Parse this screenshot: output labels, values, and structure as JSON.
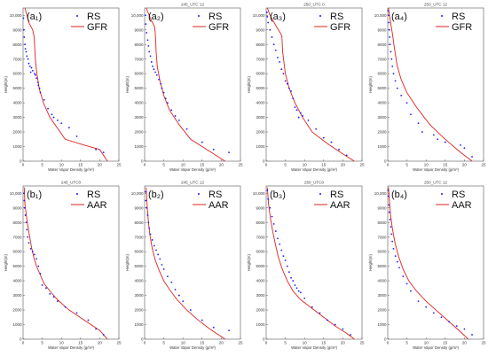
{
  "colors": {
    "rs": "#1a1aff",
    "model": "#dd2222",
    "frame": "#555555"
  },
  "panels_common": {
    "xlabel": "Water Vapor Density (g/m³)",
    "ylabel": "Height(m)",
    "xticks": [
      "0",
      "5",
      "10",
      "15",
      "20",
      "25"
    ],
    "yticks": [
      "0",
      "1000",
      "2000",
      "3000",
      "4000",
      "5000",
      "6000",
      "7000",
      "8000",
      "9000",
      "10,000"
    ]
  },
  "chart_data": [
    {
      "type": "scatter",
      "tag": "(a₁)",
      "title": "",
      "xlim": [
        0,
        25
      ],
      "ylim": [
        0,
        10500
      ],
      "legend": [
        "RS",
        "GFR"
      ],
      "legend_position": "top-right",
      "model": {
        "name": "GFR",
        "x": [
          22,
          20,
          16,
          11,
          7,
          5.3,
          4.2,
          3.6,
          3.2,
          3.0,
          2.9,
          2.5,
          1.5,
          0.5
        ],
        "y": [
          0,
          800,
          1100,
          1500,
          3000,
          4000,
          5000,
          6000,
          7000,
          8000,
          8500,
          9000,
          9500,
          10500
        ]
      },
      "rs": {
        "name": "RS",
        "x": [
          21,
          19,
          14,
          12,
          10,
          9,
          8,
          7.5,
          6.5,
          5.5,
          4.5,
          4.3,
          4.0,
          3.9,
          3.5,
          3.0,
          2.5,
          2.2,
          1.8,
          1.5,
          1.3,
          1.0,
          0.8,
          0.6,
          0.5,
          0.3,
          0.2,
          0.1,
          2.0,
          3.2
        ],
        "y": [
          600,
          800,
          1700,
          2300,
          2600,
          2800,
          3000,
          3200,
          3600,
          4200,
          4700,
          5000,
          5200,
          5400,
          5700,
          6000,
          6200,
          6400,
          6500,
          6700,
          7000,
          7200,
          7500,
          7700,
          8000,
          8500,
          9000,
          9800,
          6100,
          5900
        ]
      }
    },
    {
      "type": "scatter",
      "tag": "(a₂)",
      "title": "245_UTC 12",
      "xlim": [
        0,
        25
      ],
      "ylim": [
        0,
        10500
      ],
      "legend": [
        "RS",
        "GFR"
      ],
      "legend_position": "top-right",
      "model": {
        "name": "GFR",
        "x": [
          21,
          18,
          12,
          9,
          6.5,
          5,
          4,
          3.3,
          3,
          2.9,
          2.8,
          2.6,
          1.5,
          0.4
        ],
        "y": [
          0,
          500,
          1500,
          2500,
          3500,
          4500,
          5500,
          6500,
          7500,
          8200,
          8700,
          9200,
          9800,
          10500
        ]
      },
      "rs": {
        "name": "RS",
        "x": [
          22,
          18,
          15,
          11,
          9,
          8,
          7,
          6,
          5.5,
          5,
          4.5,
          4.2,
          3.7,
          3.2,
          2.8,
          2.4,
          2.1,
          1.8,
          1.5,
          1.2,
          1.0,
          0.8,
          0.5,
          0.3,
          0.2
        ],
        "y": [
          600,
          800,
          1300,
          2200,
          2800,
          3100,
          3500,
          4000,
          4300,
          4700,
          5000,
          5300,
          5600,
          5900,
          6100,
          6300,
          6500,
          6800,
          7200,
          7500,
          7900,
          8300,
          8800,
          9400,
          10000
        ]
      }
    },
    {
      "type": "scatter",
      "tag": "(a₃)",
      "title": "250_UTC 0",
      "xlim": [
        0,
        25
      ],
      "ylim": [
        0,
        10500
      ],
      "legend": [
        "RS",
        "GFR"
      ],
      "legend_position": "top-right",
      "model": {
        "name": "GFR",
        "x": [
          23,
          20,
          16,
          12,
          9.5,
          7.5,
          6,
          5,
          4.3,
          4.2,
          4.1,
          2.5,
          1.0,
          0.3
        ],
        "y": [
          0,
          500,
          1200,
          2000,
          3000,
          4000,
          5000,
          6000,
          7500,
          8000,
          8600,
          9300,
          10000,
          10500
        ]
      },
      "rs": {
        "name": "RS",
        "x": [
          21,
          19,
          17,
          15,
          13,
          11,
          9.5,
          9,
          8.5,
          8,
          7.5,
          7,
          6.5,
          6,
          5.5,
          5,
          4.5,
          4,
          3.5,
          3,
          2.5,
          2,
          1.5,
          1,
          0.5,
          0.3,
          0.2
        ],
        "y": [
          400,
          800,
          1300,
          1600,
          2200,
          2800,
          3100,
          3300,
          3000,
          3500,
          3700,
          4300,
          4800,
          5000,
          5300,
          5500,
          6000,
          6300,
          6800,
          7100,
          7600,
          8000,
          8500,
          9000,
          9500,
          9900,
          10200
        ]
      }
    },
    {
      "type": "scatter",
      "tag": "(a₄)",
      "title": "250_UTC 12",
      "xlim": [
        0,
        25
      ],
      "ylim": [
        0,
        10500
      ],
      "legend": [
        "RS",
        "GFR"
      ],
      "legend_position": "top-right",
      "model": {
        "name": "GFR",
        "x": [
          22,
          19,
          15,
          11,
          7.5,
          5,
          3.5,
          2.5,
          2.0,
          1.6,
          1.3,
          1.0,
          0.7,
          0.4,
          0.2
        ],
        "y": [
          0,
          600,
          1500,
          2500,
          3700,
          4700,
          5600,
          6500,
          7300,
          8000,
          8600,
          9100,
          9600,
          10100,
          10500
        ]
      },
      "rs": {
        "name": "RS",
        "x": [
          22,
          20,
          19,
          15,
          13,
          12,
          9,
          8,
          6,
          5,
          3.5,
          2.5,
          2,
          1.5,
          1.2,
          1.0,
          0.8,
          0.6,
          0.5,
          0.4,
          0.3,
          0.2,
          0.1
        ],
        "y": [
          300,
          900,
          1100,
          1300,
          1500,
          1800,
          2000,
          2600,
          3200,
          4000,
          4500,
          5000,
          5500,
          6000,
          6500,
          7000,
          7500,
          8000,
          8500,
          9000,
          9500,
          10000,
          10300
        ]
      }
    },
    {
      "type": "scatter",
      "tag": "(b₁)",
      "title": "245_UTC0",
      "xlim": [
        0,
        25
      ],
      "ylim": [
        0,
        10500
      ],
      "legend": [
        "RS",
        "AAR"
      ],
      "legend_position": "top-right",
      "model": {
        "name": "AAR",
        "x": [
          22,
          20,
          16,
          12,
          9,
          7,
          5.5,
          4.5,
          3.5,
          2.8,
          2.2,
          1.6,
          1.0,
          0.5,
          0.3
        ],
        "y": [
          0,
          600,
          1300,
          2000,
          2700,
          3300,
          3800,
          4400,
          5000,
          5600,
          6300,
          7200,
          8200,
          9200,
          10400
        ]
      },
      "rs": {
        "name": "RS",
        "x": [
          21,
          19,
          17,
          14,
          11,
          9,
          8,
          7,
          6,
          5,
          4.5,
          4,
          3.5,
          3,
          2.5,
          2,
          1.5,
          1.2,
          1.0,
          0.8,
          0.6,
          0.4,
          0.3,
          0.2
        ],
        "y": [
          300,
          700,
          1300,
          1800,
          2200,
          2600,
          2900,
          3100,
          3500,
          3700,
          4500,
          5000,
          5500,
          5800,
          6000,
          6200,
          6600,
          7000,
          7500,
          8000,
          8500,
          9000,
          9500,
          10000
        ]
      }
    },
    {
      "type": "scatter",
      "tag": "(b₂)",
      "title": "245_UTC 12",
      "xlim": [
        0,
        25
      ],
      "ylim": [
        0,
        10500
      ],
      "legend": [
        "RS",
        "AAR"
      ],
      "legend_position": "top-right",
      "model": {
        "name": "AAR",
        "x": [
          21,
          17,
          14,
          11,
          8.5,
          6.5,
          5,
          3.8,
          2.8,
          2.0,
          1.4,
          1.0,
          0.7,
          0.4
        ],
        "y": [
          0,
          700,
          1300,
          2000,
          2700,
          3400,
          4000,
          4700,
          5400,
          6200,
          7100,
          8000,
          9000,
          10400
        ]
      },
      "rs": {
        "name": "RS",
        "x": [
          22,
          18,
          15,
          12,
          10,
          9,
          8,
          7,
          6,
          5,
          4.5,
          4,
          3.5,
          3,
          2.5,
          2,
          1.5,
          1.2,
          1.0,
          0.8,
          0.5,
          0.3,
          0.2
        ],
        "y": [
          600,
          800,
          1300,
          2000,
          2600,
          3000,
          3400,
          3900,
          4300,
          4800,
          5100,
          5500,
          5800,
          6100,
          6400,
          6800,
          7200,
          7600,
          8000,
          8500,
          9000,
          9500,
          10100
        ]
      }
    },
    {
      "type": "scatter",
      "tag": "(b₃)",
      "title": "250_UTC0",
      "xlim": [
        0,
        25
      ],
      "ylim": [
        0,
        10500
      ],
      "legend": [
        "RS",
        "AAR"
      ],
      "legend_position": "top-right",
      "model": {
        "name": "AAR",
        "x": [
          23,
          21,
          18,
          15,
          12,
          9,
          7,
          5.5,
          4.2,
          3.2,
          2.4,
          1.7,
          1.1,
          0.6,
          0.3
        ],
        "y": [
          0,
          400,
          900,
          1500,
          2100,
          2700,
          3300,
          4000,
          4800,
          5600,
          6500,
          7400,
          8300,
          9300,
          10400
        ]
      },
      "rs": {
        "name": "RS",
        "x": [
          22,
          20,
          18,
          16,
          14,
          12,
          10,
          9,
          8.5,
          8,
          7.5,
          7,
          6.5,
          6,
          5.5,
          5,
          4.5,
          4,
          3.5,
          3,
          2.5,
          2,
          1.5,
          1,
          0.5,
          0.3
        ],
        "y": [
          300,
          700,
          1000,
          1300,
          1800,
          2200,
          2800,
          3200,
          3300,
          3500,
          3700,
          4000,
          4200,
          4600,
          5000,
          5400,
          5700,
          6100,
          6500,
          6900,
          7400,
          7900,
          8400,
          9000,
          9600,
          10200
        ]
      }
    },
    {
      "type": "scatter",
      "tag": "(b₄)",
      "title": "250_UTC 12",
      "xlim": [
        0,
        25
      ],
      "ylim": [
        0,
        10500
      ],
      "legend": [
        "RS",
        "AAR"
      ],
      "legend_position": "top-right",
      "model": {
        "name": "AAR",
        "x": [
          21,
          19,
          16,
          13,
          10,
          7.5,
          5.5,
          4,
          2.8,
          1.9,
          1.2,
          0.7,
          0.4,
          0.2
        ],
        "y": [
          0,
          500,
          1200,
          1900,
          2600,
          3300,
          4000,
          4800,
          5700,
          6600,
          7600,
          8600,
          9600,
          10400
        ]
      },
      "rs": {
        "name": "RS",
        "x": [
          22,
          20,
          18,
          16,
          14,
          12,
          10,
          8,
          6,
          5,
          4,
          3,
          2.5,
          2,
          1.5,
          1.2,
          1.0,
          0.8,
          0.6,
          0.4,
          0.3,
          0.2,
          0.1
        ],
        "y": [
          300,
          700,
          900,
          1200,
          1500,
          1800,
          2200,
          2600,
          3300,
          3800,
          4300,
          4900,
          5300,
          5700,
          6200,
          6700,
          7200,
          7700,
          8200,
          8700,
          9200,
          9800,
          10200
        ]
      }
    }
  ]
}
